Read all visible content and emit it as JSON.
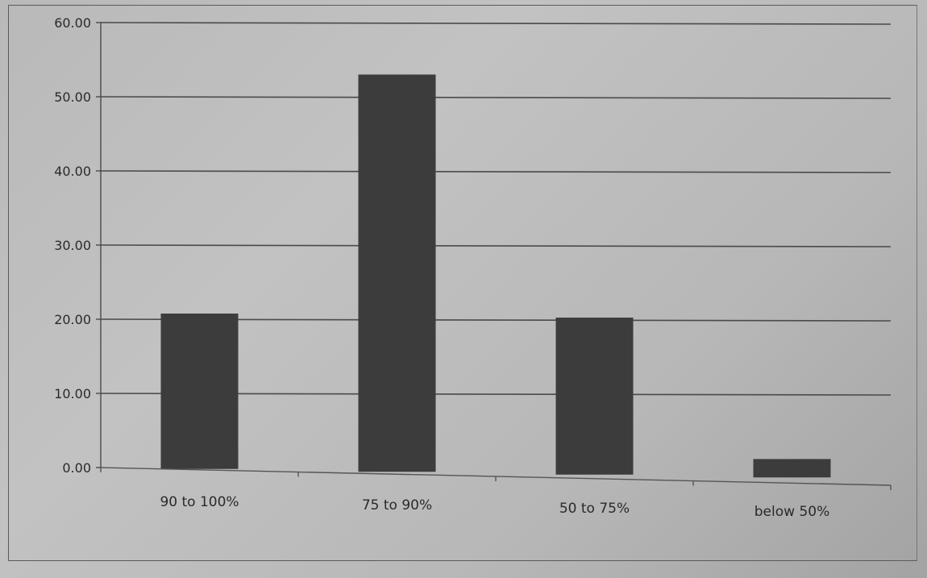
{
  "chart_data": {
    "type": "bar",
    "title": "",
    "xlabel": "",
    "ylabel": "",
    "categories": [
      "90 to 100%",
      "75 to 90%",
      "50 to 75%",
      "below 50%"
    ],
    "values": [
      20.9,
      53.4,
      20.9,
      2.1
    ],
    "ylim": [
      0,
      60
    ],
    "yticks": [
      0,
      10,
      20,
      30,
      40,
      50,
      60
    ],
    "ytick_labels": [
      "0.00",
      "10.00",
      "20.00",
      "30.00",
      "40.00",
      "50.00",
      "60.00"
    ],
    "grid": true,
    "legend": "none",
    "bar_color": "#3c3c3c",
    "grid_color": "#4a4a4a"
  }
}
